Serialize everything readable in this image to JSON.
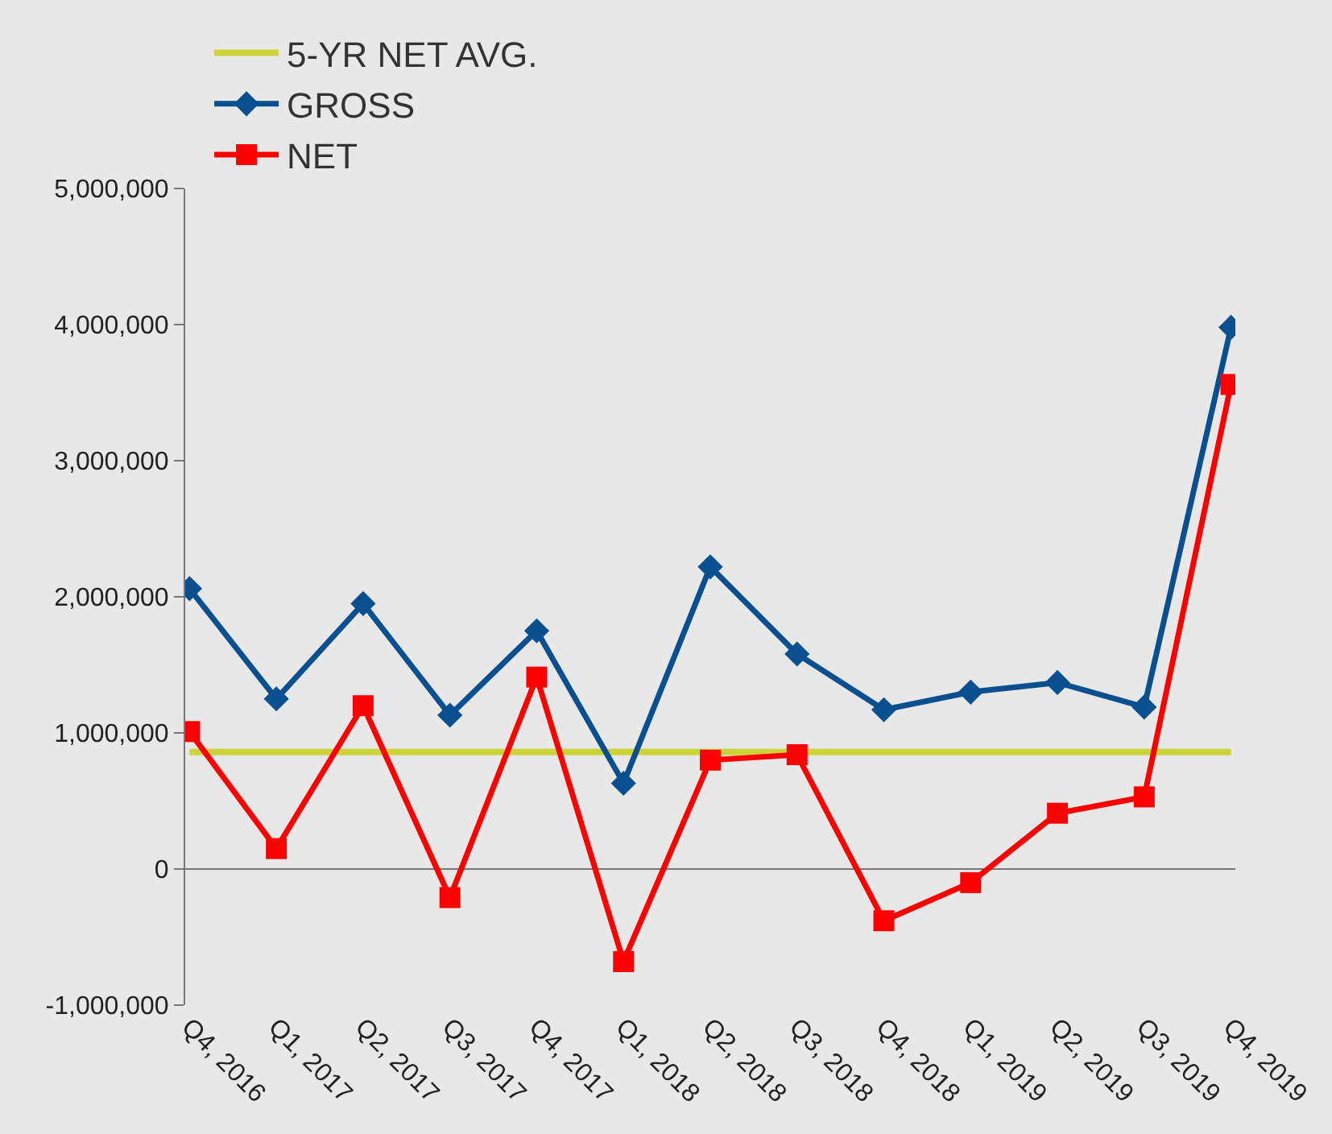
{
  "chart_data": {
    "type": "line",
    "categories": [
      "Q4, 2016",
      "Q1, 2017",
      "Q2, 2017",
      "Q3, 2017",
      "Q4, 2017",
      "Q1, 2018",
      "Q2, 2018",
      "Q3, 2018",
      "Q4, 2018",
      "Q1, 2019",
      "Q2, 2019",
      "Q3, 2019",
      "Q4, 2019"
    ],
    "series": [
      {
        "name": "5-YR NET AVG.",
        "color": "#cdd43a",
        "marker": "none",
        "values": [
          860000,
          860000,
          860000,
          860000,
          860000,
          860000,
          860000,
          860000,
          860000,
          860000,
          860000,
          860000,
          860000
        ]
      },
      {
        "name": "GROSS",
        "color": "#0a4f8f",
        "marker": "diamond",
        "values": [
          2060000,
          1250000,
          1950000,
          1130000,
          1750000,
          630000,
          2220000,
          1580000,
          1170000,
          1300000,
          1370000,
          1190000,
          3980000
        ]
      },
      {
        "name": "NET",
        "color": "#ff0000",
        "marker": "square",
        "values": [
          1010000,
          150000,
          1200000,
          -210000,
          1410000,
          -680000,
          800000,
          840000,
          -380000,
          -100000,
          410000,
          530000,
          3560000
        ]
      }
    ],
    "ylim": [
      -1000000,
      5000000
    ],
    "yticks": [
      {
        "value": -1000000,
        "label": "-1,000,000"
      },
      {
        "value": 0,
        "label": "0"
      },
      {
        "value": 1000000,
        "label": "1,000,000"
      },
      {
        "value": 2000000,
        "label": "2,000,000"
      },
      {
        "value": 3000000,
        "label": "3,000,000"
      },
      {
        "value": 4000000,
        "label": "4,000,000"
      },
      {
        "value": 5000000,
        "label": "5,000,000"
      }
    ],
    "legend": "top left"
  }
}
